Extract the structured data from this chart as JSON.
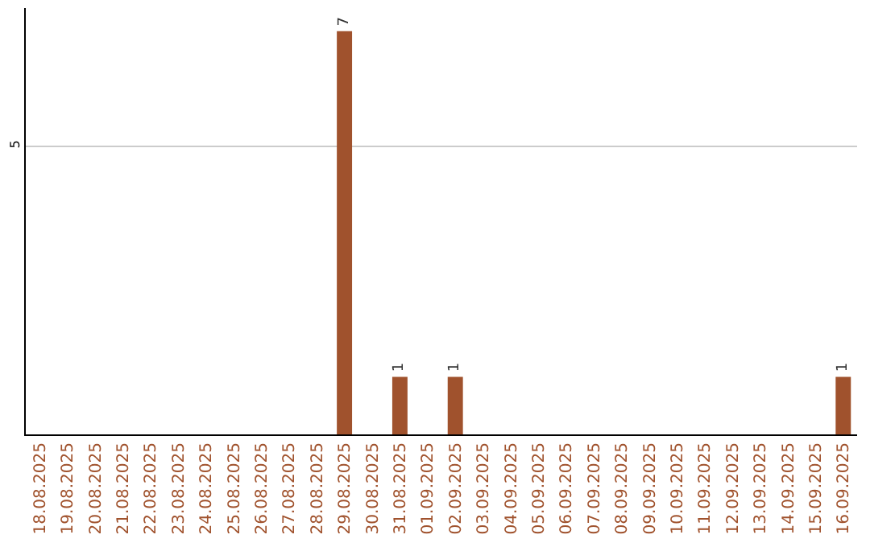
{
  "chart_data": {
    "type": "bar",
    "categories": [
      "18.08.2025",
      "19.08.2025",
      "20.08.2025",
      "21.08.2025",
      "22.08.2025",
      "23.08.2025",
      "24.08.2025",
      "25.08.2025",
      "26.08.2025",
      "27.08.2025",
      "28.08.2025",
      "29.08.2025",
      "30.08.2025",
      "31.08.2025",
      "01.09.2025",
      "02.09.2025",
      "03.09.2025",
      "04.09.2025",
      "05.09.2025",
      "06.09.2025",
      "07.09.2025",
      "08.09.2025",
      "09.09.2025",
      "10.09.2025",
      "11.09.2025",
      "12.09.2025",
      "13.09.2025",
      "14.09.2025",
      "15.09.2025",
      "16.09.2025"
    ],
    "values": [
      0,
      0,
      0,
      0,
      0,
      0,
      0,
      0,
      0,
      0,
      0,
      7,
      0,
      1,
      0,
      1,
      0,
      0,
      0,
      0,
      0,
      0,
      0,
      0,
      0,
      0,
      0,
      0,
      0,
      1
    ],
    "value_labels": [
      null,
      null,
      null,
      null,
      null,
      null,
      null,
      null,
      null,
      null,
      null,
      "7",
      null,
      "1",
      null,
      "1",
      null,
      null,
      null,
      null,
      null,
      null,
      null,
      null,
      null,
      null,
      null,
      null,
      null,
      "1"
    ],
    "color": "#a0522d",
    "ylim": [
      0,
      7.4
    ],
    "yticks": [
      5
    ],
    "grid": "y",
    "legend": false
  }
}
